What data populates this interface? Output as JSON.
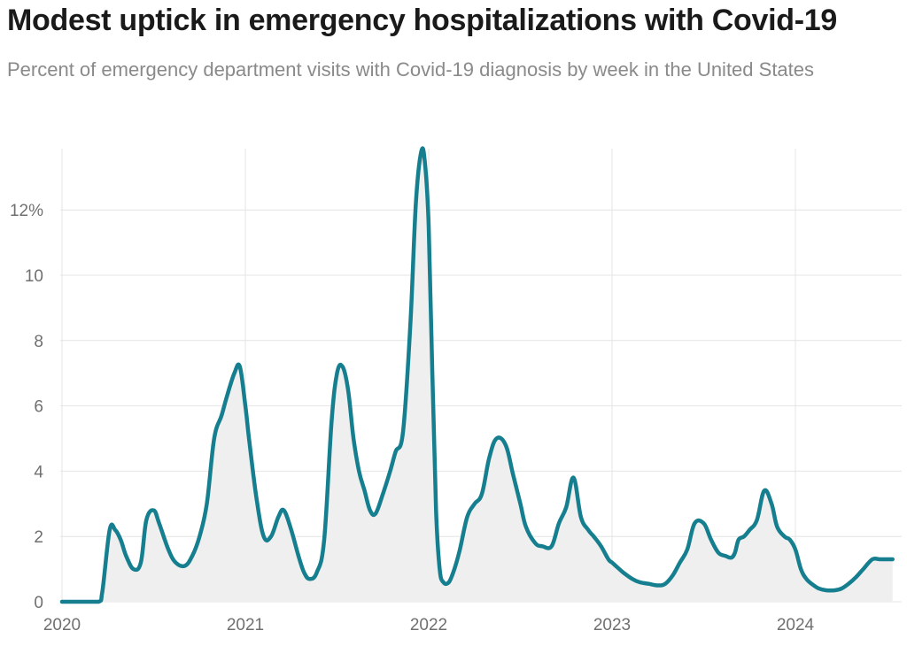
{
  "header": {
    "title": "Modest uptick in emergency hospitalizations with Covid-19",
    "subtitle": "Percent of emergency department visits with Covid-19 diagnosis by week in the United States"
  },
  "colors": {
    "line": "#167f8f",
    "area": "#efefef",
    "grid": "#e4e4e4",
    "axis_text": "#707070"
  },
  "chart_data": {
    "type": "area",
    "title": "Modest uptick in emergency hospitalizations with Covid-19",
    "subtitle": "Percent of emergency department visits with Covid-19 diagnosis by week in the United States",
    "xlabel": "",
    "ylabel": "",
    "xlim": [
      2020.0,
      2024.6
    ],
    "ylim": [
      0,
      14
    ],
    "x_ticks": [
      2020,
      2021,
      2022,
      2023,
      2024
    ],
    "x_tick_labels": [
      "2020",
      "2021",
      "2022",
      "2023",
      "2024"
    ],
    "y_ticks": [
      0,
      2,
      4,
      6,
      8,
      10,
      12
    ],
    "y_tick_labels": [
      "0",
      "2",
      "4",
      "6",
      "8",
      "10",
      "12%"
    ],
    "grid": true,
    "series": [
      {
        "name": "Percent of ED visits with Covid-19 diagnosis",
        "x": [
          2020.0,
          2020.1,
          2020.2,
          2020.22,
          2020.26,
          2020.29,
          2020.32,
          2020.35,
          2020.39,
          2020.43,
          2020.46,
          2020.5,
          2020.53,
          2020.58,
          2020.62,
          2020.67,
          2020.71,
          2020.75,
          2020.79,
          2020.83,
          2020.87,
          2020.9,
          2020.94,
          2020.97,
          2021.0,
          2021.02,
          2021.06,
          2021.1,
          2021.14,
          2021.18,
          2021.21,
          2021.25,
          2021.29,
          2021.32,
          2021.35,
          2021.39,
          2021.43,
          2021.47,
          2021.5,
          2021.53,
          2021.56,
          2021.59,
          2021.62,
          2021.65,
          2021.68,
          2021.71,
          2021.75,
          2021.79,
          2021.82,
          2021.86,
          2021.9,
          2021.93,
          2021.96,
          2021.98,
          2022.0,
          2022.02,
          2022.04,
          2022.06,
          2022.08,
          2022.11,
          2022.14,
          2022.17,
          2022.21,
          2022.25,
          2022.29,
          2022.33,
          2022.37,
          2022.42,
          2022.46,
          2022.5,
          2022.53,
          2022.58,
          2022.62,
          2022.67,
          2022.71,
          2022.75,
          2022.79,
          2022.83,
          2022.87,
          2022.9,
          2022.94,
          2022.98,
          2023.0,
          2023.02,
          2023.06,
          2023.11,
          2023.15,
          2023.2,
          2023.25,
          2023.29,
          2023.33,
          2023.37,
          2023.41,
          2023.45,
          2023.5,
          2023.54,
          2023.58,
          2023.62,
          2023.65,
          2023.67,
          2023.69,
          2023.72,
          2023.75,
          2023.79,
          2023.83,
          2023.87,
          2023.9,
          2023.94,
          2023.97,
          2024.0,
          2024.03,
          2024.06,
          2024.1,
          2024.13,
          2024.17,
          2024.21,
          2024.25,
          2024.29,
          2024.33,
          2024.37,
          2024.42,
          2024.46,
          2024.5,
          2024.53
        ],
        "y": [
          0.0,
          0.0,
          0.0,
          0.3,
          2.2,
          2.2,
          1.9,
          1.4,
          1.0,
          1.2,
          2.5,
          2.8,
          2.4,
          1.6,
          1.2,
          1.1,
          1.4,
          2.0,
          3.0,
          5.0,
          5.7,
          6.3,
          7.0,
          7.2,
          6.0,
          5.0,
          3.2,
          2.0,
          2.0,
          2.6,
          2.8,
          2.2,
          1.4,
          0.9,
          0.7,
          0.9,
          1.9,
          5.5,
          7.0,
          7.2,
          6.5,
          5.0,
          4.0,
          3.4,
          2.8,
          2.7,
          3.3,
          4.0,
          4.6,
          5.2,
          8.5,
          12.2,
          13.8,
          13.4,
          11.5,
          7.0,
          2.8,
          1.0,
          0.6,
          0.6,
          1.0,
          1.6,
          2.6,
          3.0,
          3.3,
          4.4,
          5.0,
          4.8,
          3.9,
          3.0,
          2.3,
          1.8,
          1.7,
          1.7,
          2.4,
          2.9,
          3.8,
          2.6,
          2.2,
          2.0,
          1.7,
          1.3,
          1.2,
          1.1,
          0.9,
          0.7,
          0.6,
          0.55,
          0.5,
          0.55,
          0.8,
          1.2,
          1.6,
          2.4,
          2.4,
          1.9,
          1.5,
          1.4,
          1.35,
          1.5,
          1.9,
          2.0,
          2.2,
          2.5,
          3.4,
          3.0,
          2.3,
          2.0,
          1.9,
          1.6,
          1.0,
          0.7,
          0.5,
          0.4,
          0.35,
          0.35,
          0.4,
          0.55,
          0.75,
          1.0,
          1.3,
          1.3,
          1.3,
          1.3
        ]
      }
    ]
  }
}
